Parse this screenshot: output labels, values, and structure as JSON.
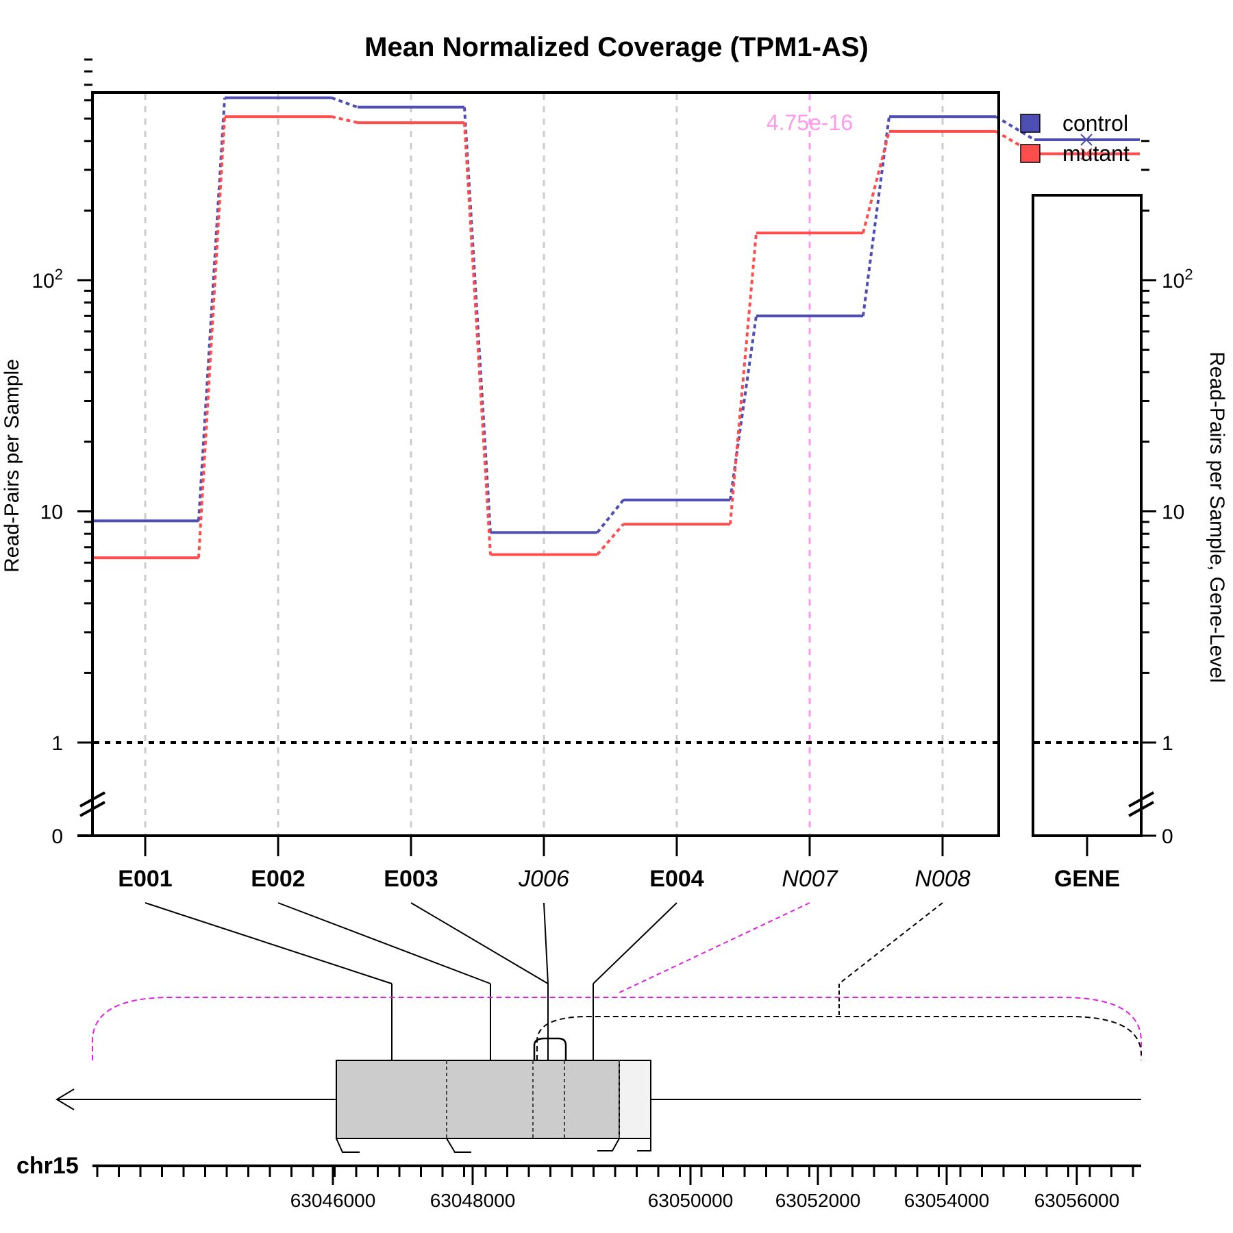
{
  "chart_data": {
    "type": "line",
    "title": "Mean Normalized Coverage (TPM1-AS)",
    "ylabel_left": "Read-Pairs per Sample",
    "ylabel_right": "Read-Pairs per Sample, Gene-Level",
    "y_scale": "log",
    "y_ticks": [
      {
        "value": 0,
        "label": "0"
      },
      {
        "value": 1,
        "label": "1"
      },
      {
        "value": 10,
        "label": "10"
      },
      {
        "value": 100,
        "label": "10^2"
      }
    ],
    "reference_line_value": 1,
    "features": [
      {
        "id": "E001",
        "style": "bold"
      },
      {
        "id": "E002",
        "style": "bold"
      },
      {
        "id": "E003",
        "style": "bold"
      },
      {
        "id": "J006",
        "style": "italic"
      },
      {
        "id": "E004",
        "style": "bold"
      },
      {
        "id": "N007",
        "style": "italic",
        "highlight": true
      },
      {
        "id": "N008",
        "style": "italic"
      }
    ],
    "series": [
      {
        "name": "control",
        "color": "#4d4db3",
        "values": [
          9.1,
          615,
          560,
          8.1,
          11.2,
          70,
          510
        ]
      },
      {
        "name": "mutant",
        "color": "#ff4d4d",
        "values": [
          6.3,
          510,
          480,
          6.5,
          8.8,
          160,
          440
        ]
      }
    ],
    "gene_level": {
      "label": "GENE",
      "values": {
        "control": 405,
        "mutant": 352
      }
    },
    "significant_feature": {
      "feature": "N007",
      "pvalue": "4.75e-16",
      "color": "#ff99ee"
    },
    "legend": {
      "placement": "top-right"
    },
    "grid": "vertical dashed at features",
    "gene_track": {
      "chromosome": "chr15",
      "strand": "-",
      "coordinate_ticks": [
        "63046000",
        "63048000",
        "63050000",
        "63052000",
        "63054000",
        "63056000"
      ]
    }
  }
}
